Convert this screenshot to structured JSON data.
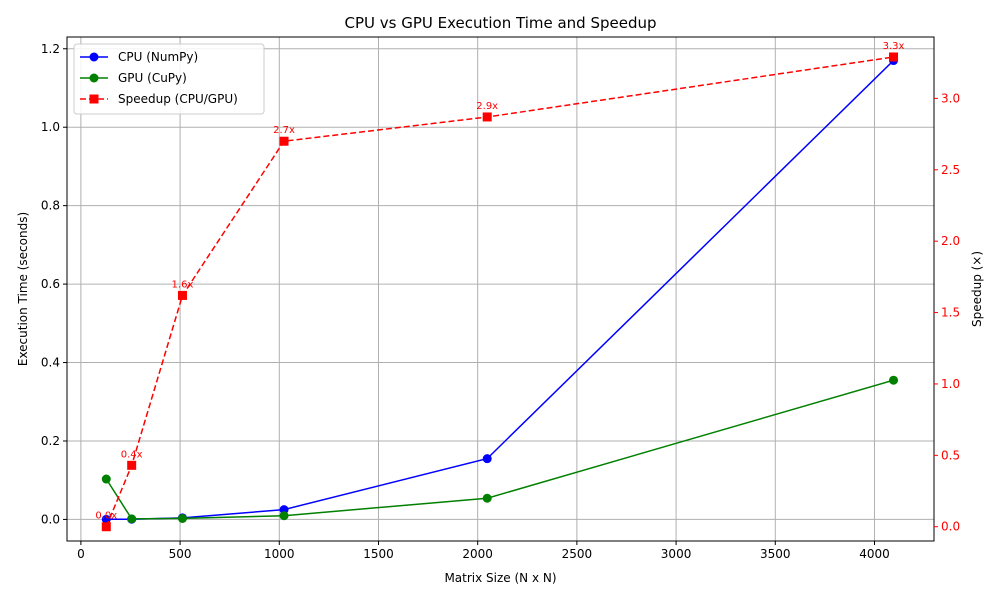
{
  "chart_data": {
    "type": "line",
    "title": "CPU vs GPU Execution Time and Speedup",
    "xlabel": "Matrix Size (N x N)",
    "ylabel": "Execution Time (seconds)",
    "y2label": "Speedup (×)",
    "xlim": [
      -70,
      4300
    ],
    "ylim": [
      -0.055,
      1.23
    ],
    "y2lim": [
      -0.1,
      3.43
    ],
    "x_ticks": [
      0,
      500,
      1000,
      1500,
      2000,
      2500,
      3000,
      3500,
      4000
    ],
    "y_ticks": [
      0.0,
      0.2,
      0.4,
      0.6,
      0.8,
      1.0,
      1.2
    ],
    "y2_ticks": [
      0.0,
      0.5,
      1.0,
      1.5,
      2.0,
      2.5,
      3.0
    ],
    "grid": true,
    "legend_position": "top-left",
    "series": [
      {
        "name": "CPU (NumPy)",
        "axis": "left",
        "color": "#0000ff",
        "line_style": "solid",
        "marker": "circle",
        "x": [
          128,
          256,
          512,
          1024,
          2048,
          4096
        ],
        "y": [
          0.0002,
          0.0006,
          0.004,
          0.025,
          0.155,
          1.17
        ]
      },
      {
        "name": "GPU (CuPy)",
        "axis": "left",
        "color": "#008000",
        "line_style": "solid",
        "marker": "circle",
        "x": [
          128,
          256,
          512,
          1024,
          2048,
          4096
        ],
        "y": [
          0.103,
          0.0014,
          0.0025,
          0.0095,
          0.054,
          0.355
        ]
      },
      {
        "name": "Speedup (CPU/GPU)",
        "axis": "right",
        "color": "#ff0000",
        "line_style": "dashed",
        "marker": "square",
        "x": [
          128,
          256,
          512,
          1024,
          2048,
          4096
        ],
        "y": [
          0.0,
          0.43,
          1.62,
          2.7,
          2.87,
          3.29
        ],
        "labels": [
          "0.0x",
          "0.4x",
          "1.6x",
          "2.7x",
          "2.9x",
          "3.3x"
        ]
      }
    ]
  }
}
